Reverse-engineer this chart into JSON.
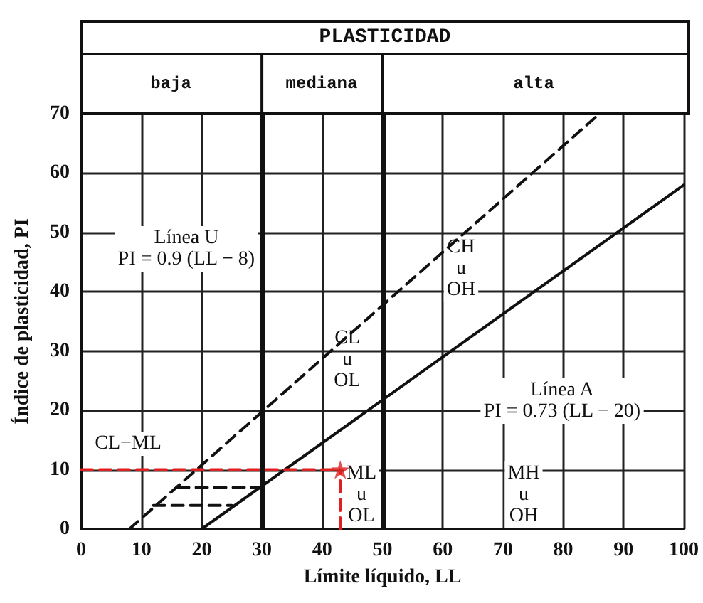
{
  "chart_data": {
    "type": "line",
    "title": "PLASTICIDAD",
    "xlabel": "Límite líquido, LL",
    "ylabel": "Índice de plasticidad, PI",
    "series": [
      {
        "x": [
          8,
          86
        ],
        "values": [
          0,
          70
        ],
        "color": "#111111",
        "line_style": "dashed",
        "marker": "none"
      },
      {
        "x": [
          20,
          100
        ],
        "values": [
          0,
          58
        ],
        "color": "#111111",
        "line_style": "solid",
        "marker": "none"
      },
      {
        "x": [
          16,
          30
        ],
        "values": [
          7,
          7
        ],
        "color": "#111111",
        "line_style": "dashed",
        "marker": "none"
      },
      {
        "x": [
          12,
          25
        ],
        "values": [
          4,
          4
        ],
        "color": "#111111",
        "line_style": "dashed",
        "marker": "none"
      },
      {
        "x": [
          0,
          43
        ],
        "values": [
          10,
          10
        ],
        "color": "#e02020",
        "line_style": "dashed",
        "marker": "none"
      },
      {
        "x": [
          43,
          43
        ],
        "values": [
          0,
          10
        ],
        "color": "#e02020",
        "line_style": "dashed",
        "marker": "none"
      },
      {
        "type": "scatter",
        "x": [
          43
        ],
        "values": [
          10
        ],
        "color": "#e02020",
        "marker": "star"
      }
    ],
    "ref_lines": [
      {
        "axis": "x",
        "value": 30,
        "color": "#111111"
      },
      {
        "axis": "x",
        "value": 50,
        "color": "#111111"
      }
    ],
    "annotations": [
      "Línea U\nPI = 0.9 (LL − 8)",
      "Línea A\nPI = 0.73 (LL − 20)",
      "CL\nu\nOL",
      "CH\nu\nOH",
      "ML\nu\nOL",
      "MH\nu\nOH",
      "CL−ML",
      "baja",
      "mediana",
      "alta"
    ],
    "xlim": [
      0,
      100
    ],
    "xticks": [
      0,
      10,
      20,
      30,
      40,
      50,
      60,
      70,
      80,
      90,
      100
    ],
    "ylim": [
      0,
      70
    ],
    "yticks": [
      0,
      10,
      20,
      30,
      40,
      50,
      60,
      70
    ],
    "grid": true
  }
}
